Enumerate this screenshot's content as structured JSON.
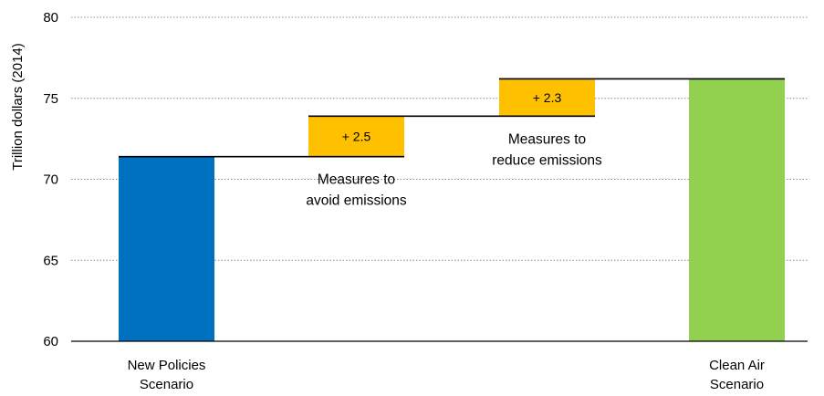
{
  "chart_data": {
    "type": "bar",
    "subtype": "waterfall",
    "ylabel": "Trillion dollars (2014)",
    "ylim": [
      60,
      80
    ],
    "yticks": [
      60,
      65,
      70,
      75,
      80
    ],
    "grid": true,
    "bars": [
      {
        "kind": "total",
        "label_lines": [
          "New Policies",
          "Scenario"
        ],
        "value": 71.4,
        "color": "#0070c0"
      },
      {
        "kind": "increment",
        "label_lines": [
          "Measures to",
          "avoid emissions"
        ],
        "start": 71.4,
        "end": 73.9,
        "data_label": "+ 2.5",
        "color": "#ffc000"
      },
      {
        "kind": "increment",
        "label_lines": [
          "Measures to",
          "reduce emissions"
        ],
        "start": 73.9,
        "end": 76.2,
        "data_label": "+ 2.3",
        "color": "#ffc000"
      },
      {
        "kind": "total",
        "label_lines": [
          "Clean Air",
          "Scenario"
        ],
        "value": 76.2,
        "color": "#92d050"
      }
    ]
  }
}
